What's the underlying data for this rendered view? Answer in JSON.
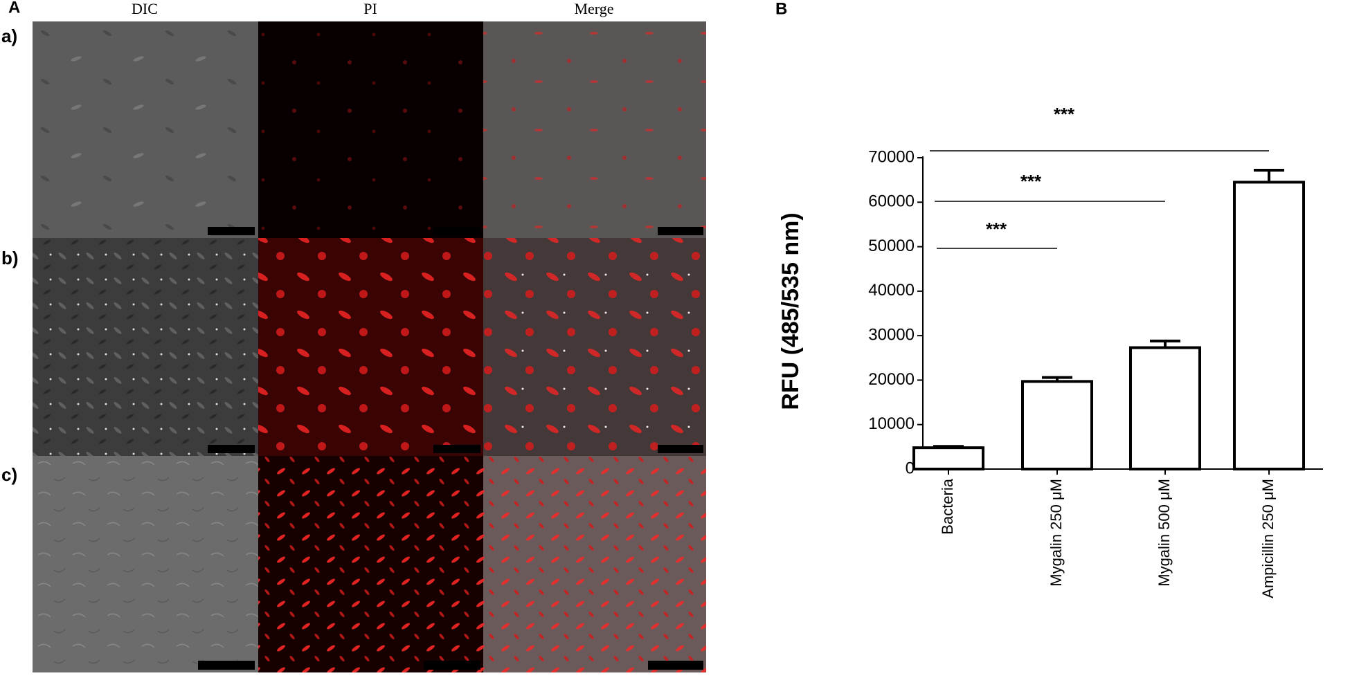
{
  "panel_a": {
    "label": "A",
    "columns": [
      "DIC",
      "PI",
      "Merge"
    ],
    "rows": [
      "a)",
      "b)",
      "c)"
    ]
  },
  "chart_data": {
    "type": "bar",
    "panel_label": "B",
    "ylabel": "RFU (485/535 nm)",
    "categories": [
      "Bacteria",
      "Mygalin 250 μM",
      "Mygalin 500 μM",
      "Ampicillin 250 μM"
    ],
    "values": [
      4800,
      19700,
      27300,
      64500
    ],
    "errors": [
      300,
      900,
      1500,
      2700
    ],
    "color": "#ffffff",
    "edgecolor": "#000000",
    "ylim": [
      0,
      70000
    ],
    "yticks": [
      0,
      10000,
      20000,
      30000,
      40000,
      50000,
      60000,
      70000
    ],
    "annotations": [
      "***",
      "***",
      "***"
    ]
  }
}
